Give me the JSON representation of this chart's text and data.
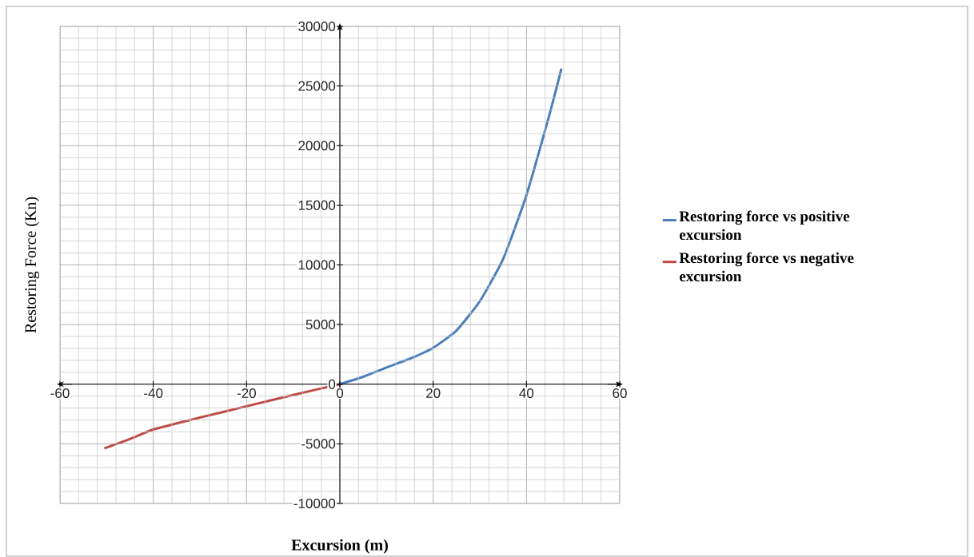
{
  "chart_data": {
    "type": "line",
    "xlabel": "Excursion (m)",
    "ylabel": "Restoring Force (Kn)",
    "xlim": [
      -60,
      60
    ],
    "ylim": [
      -10000,
      30000
    ],
    "xticks": [
      -60,
      -40,
      -20,
      0,
      20,
      40,
      60
    ],
    "yticks": [
      -10000,
      -5000,
      0,
      5000,
      10000,
      15000,
      20000,
      25000,
      30000
    ],
    "grid": true,
    "legend": "right",
    "marker": "none",
    "line_style": "solid",
    "series": [
      {
        "name": "Restoring force vs positive excursion",
        "color": "#4a7ebb",
        "x": [
          0,
          5,
          10,
          15,
          20,
          25,
          30,
          35,
          40,
          45,
          47.5
        ],
        "values": [
          0,
          620,
          1400,
          2130,
          3050,
          4500,
          6950,
          10500,
          15850,
          22700,
          26450
        ]
      },
      {
        "name": "Restoring force vs negative excursion",
        "color": "#be4b48",
        "x": [
          0,
          -10,
          -20,
          -30,
          -40,
          -45,
          -50.5
        ],
        "values": [
          0,
          -900,
          -1850,
          -2800,
          -3800,
          -4600,
          -5380
        ]
      }
    ]
  }
}
